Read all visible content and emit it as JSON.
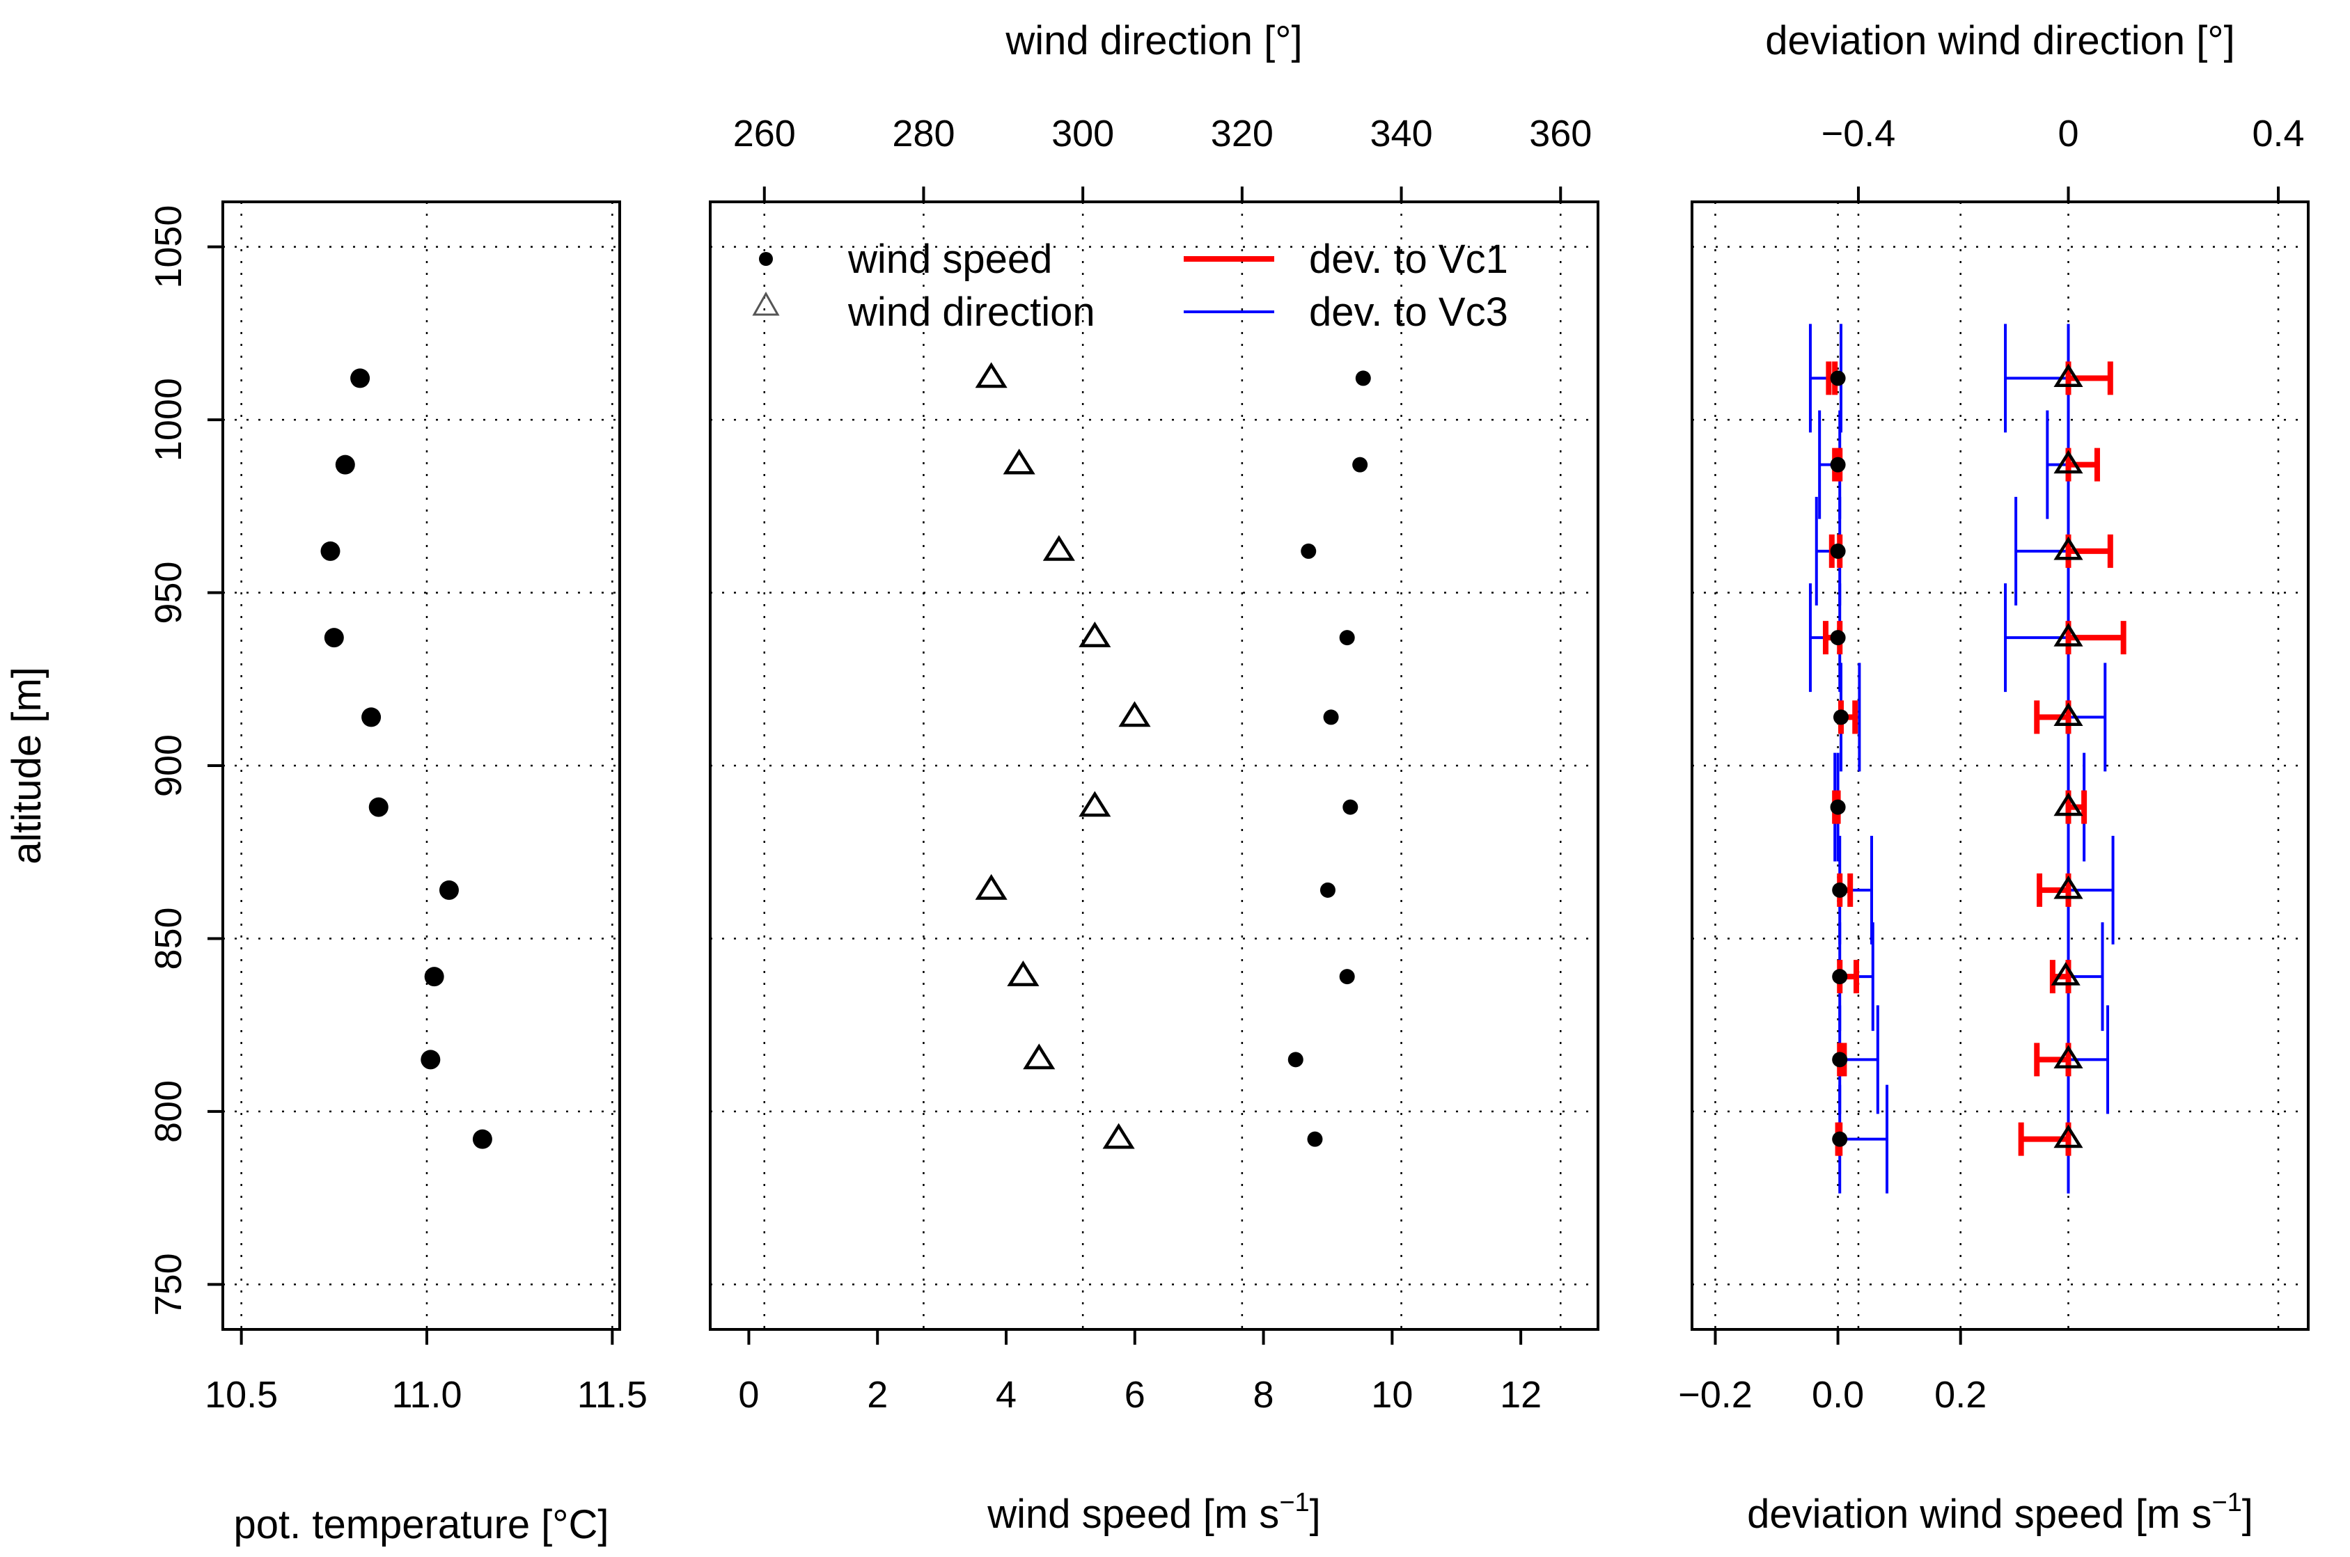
{
  "chart_data": [
    {
      "id": "temp",
      "type": "scatter",
      "xlabel": "pot. temperature [°C]",
      "ylabel": "altitude [m]",
      "xlim": [
        10.45,
        11.52
      ],
      "ylim": [
        737,
        1063
      ],
      "xticks": [
        "10.5",
        "11.0",
        "11.5"
      ],
      "xtick_values": [
        10.5,
        11.0,
        11.5
      ],
      "yticks": [
        "750",
        "800",
        "850",
        "900",
        "950",
        "1000",
        "1050"
      ],
      "ytick_values": [
        750,
        800,
        850,
        900,
        950,
        1000,
        1050
      ],
      "grid": true,
      "series": [
        {
          "name": "pot. temperature",
          "marker": "filled-circle",
          "points": [
            {
              "x": 10.82,
              "y": 1012
            },
            {
              "x": 10.78,
              "y": 987
            },
            {
              "x": 10.74,
              "y": 962
            },
            {
              "x": 10.75,
              "y": 937
            },
            {
              "x": 10.85,
              "y": 914
            },
            {
              "x": 10.87,
              "y": 888
            },
            {
              "x": 11.06,
              "y": 864
            },
            {
              "x": 11.02,
              "y": 839
            },
            {
              "x": 11.01,
              "y": 815
            },
            {
              "x": 11.15,
              "y": 792
            }
          ]
        }
      ]
    },
    {
      "id": "wind",
      "type": "scatter",
      "xlabel": "wind speed [m s⁻¹]",
      "x2label": "wind direction [°]",
      "xlim": [
        -0.6,
        13.2
      ],
      "x2lim": [
        253.2,
        364.7
      ],
      "ylim": [
        737,
        1063
      ],
      "xticks": [
        "0",
        "2",
        "4",
        "6",
        "8",
        "10",
        "12"
      ],
      "xtick_values": [
        0,
        2,
        4,
        6,
        8,
        10,
        12
      ],
      "x2ticks": [
        "260",
        "280",
        "300",
        "320",
        "340",
        "360"
      ],
      "x2tick_values": [
        260,
        280,
        300,
        320,
        340,
        360
      ],
      "grid": true,
      "legend": {
        "placement": "top",
        "entries": [
          {
            "label": "wind speed",
            "symbol": "dot"
          },
          {
            "label": "wind direction",
            "symbol": "triangle"
          },
          {
            "label": "dev. to Vc1",
            "symbol": "line",
            "color": "#ff0000"
          },
          {
            "label": "dev. to Vc3",
            "symbol": "line",
            "color": "#0000ff"
          }
        ]
      },
      "series": [
        {
          "name": "wind speed",
          "marker": "dot",
          "axis": "bottom",
          "points": [
            {
              "x": 9.55,
              "y": 1012
            },
            {
              "x": 9.5,
              "y": 987
            },
            {
              "x": 8.7,
              "y": 962
            },
            {
              "x": 9.3,
              "y": 937
            },
            {
              "x": 9.05,
              "y": 914
            },
            {
              "x": 9.35,
              "y": 888
            },
            {
              "x": 9.0,
              "y": 864
            },
            {
              "x": 9.3,
              "y": 839
            },
            {
              "x": 8.5,
              "y": 815
            },
            {
              "x": 8.8,
              "y": 792
            }
          ]
        },
        {
          "name": "wind direction",
          "marker": "triangle",
          "axis": "top",
          "points": [
            {
              "x": 288.5,
              "y": 1012
            },
            {
              "x": 292,
              "y": 987
            },
            {
              "x": 297,
              "y": 962
            },
            {
              "x": 301.5,
              "y": 937
            },
            {
              "x": 306.5,
              "y": 914
            },
            {
              "x": 301.5,
              "y": 888
            },
            {
              "x": 288.5,
              "y": 864
            },
            {
              "x": 292.5,
              "y": 839
            },
            {
              "x": 294.5,
              "y": 815
            },
            {
              "x": 304.5,
              "y": 792
            }
          ]
        }
      ]
    },
    {
      "id": "dev",
      "type": "scatter",
      "xlabel": "deviation wind speed [m s⁻¹]",
      "x2label": "deviation wind direction [°]",
      "xlim": [
        -0.238,
        0.767
      ],
      "x2lim": [
        -0.717,
        0.457
      ],
      "ylim": [
        737,
        1063
      ],
      "xticks": [
        "−0.2",
        "0.0",
        "0.2"
      ],
      "xtick_values": [
        -0.2,
        0.0,
        0.2
      ],
      "x2ticks": [
        "−0.4",
        "0",
        "0.4"
      ],
      "x2tick_values": [
        -0.4,
        0.0,
        0.4
      ],
      "grid": true,
      "speed_points": [
        {
          "y": 1012,
          "x": 0.0,
          "vc1": [
            -0.015,
            -0.005
          ],
          "vc3": [
            -0.045,
            0.005
          ]
        },
        {
          "y": 987,
          "x": 0.0,
          "vc1": [
            -0.005,
            0.003
          ],
          "vc3": [
            -0.03,
            0.003
          ]
        },
        {
          "y": 962,
          "x": 0.0,
          "vc1": [
            -0.01,
            0.003
          ],
          "vc3": [
            -0.035,
            0.003
          ]
        },
        {
          "y": 937,
          "x": 0.0,
          "vc1": [
            -0.02,
            0.003
          ],
          "vc3": [
            -0.045,
            0.003
          ]
        },
        {
          "y": 914,
          "x": 0.005,
          "vc1": [
            0.005,
            0.028
          ],
          "vc3": [
            0.005,
            0.035
          ]
        },
        {
          "y": 888,
          "x": 0.0,
          "vc1": [
            -0.005,
            0.0
          ],
          "vc3": [
            -0.005,
            0.0
          ]
        },
        {
          "y": 864,
          "x": 0.003,
          "vc1": [
            0.003,
            0.02
          ],
          "vc3": [
            0.003,
            0.055
          ]
        },
        {
          "y": 839,
          "x": 0.003,
          "vc1": [
            0.003,
            0.03
          ],
          "vc3": [
            0.003,
            0.057
          ]
        },
        {
          "y": 815,
          "x": 0.003,
          "vc1": [
            0.003,
            0.01
          ],
          "vc3": [
            0.003,
            0.065
          ]
        },
        {
          "y": 792,
          "x": 0.003,
          "vc1": [
            0.0,
            0.003
          ],
          "vc3": [
            0.003,
            0.08
          ]
        }
      ],
      "direction_points": [
        {
          "y": 1012,
          "x": 0.0,
          "vc1": [
            0.0,
            0.08
          ],
          "vc3": [
            -0.12,
            0.0
          ]
        },
        {
          "y": 987,
          "x": 0.0,
          "vc1": [
            0.0,
            0.055
          ],
          "vc3": [
            -0.04,
            0.0
          ]
        },
        {
          "y": 962,
          "x": 0.0,
          "vc1": [
            0.0,
            0.08
          ],
          "vc3": [
            -0.1,
            0.0
          ]
        },
        {
          "y": 937,
          "x": 0.0,
          "vc1": [
            0.0,
            0.105
          ],
          "vc3": [
            -0.12,
            0.0
          ]
        },
        {
          "y": 914,
          "x": 0.0,
          "vc1": [
            -0.06,
            0.0
          ],
          "vc3": [
            0.0,
            0.07
          ]
        },
        {
          "y": 888,
          "x": 0.0,
          "vc1": [
            0.0,
            0.03
          ],
          "vc3": [
            0.0,
            0.03
          ]
        },
        {
          "y": 864,
          "x": 0.0,
          "vc1": [
            -0.055,
            0.0
          ],
          "vc3": [
            0.0,
            0.085
          ]
        },
        {
          "y": 839,
          "x": -0.005,
          "vc1": [
            -0.03,
            0.0
          ],
          "vc3": [
            0.0,
            0.065
          ]
        },
        {
          "y": 815,
          "x": 0.0,
          "vc1": [
            -0.06,
            0.0
          ],
          "vc3": [
            0.0,
            0.075
          ]
        },
        {
          "y": 792,
          "x": 0.0,
          "vc1": [
            -0.09,
            0.0
          ],
          "vc3": [
            0.0,
            0.0
          ]
        }
      ]
    }
  ]
}
